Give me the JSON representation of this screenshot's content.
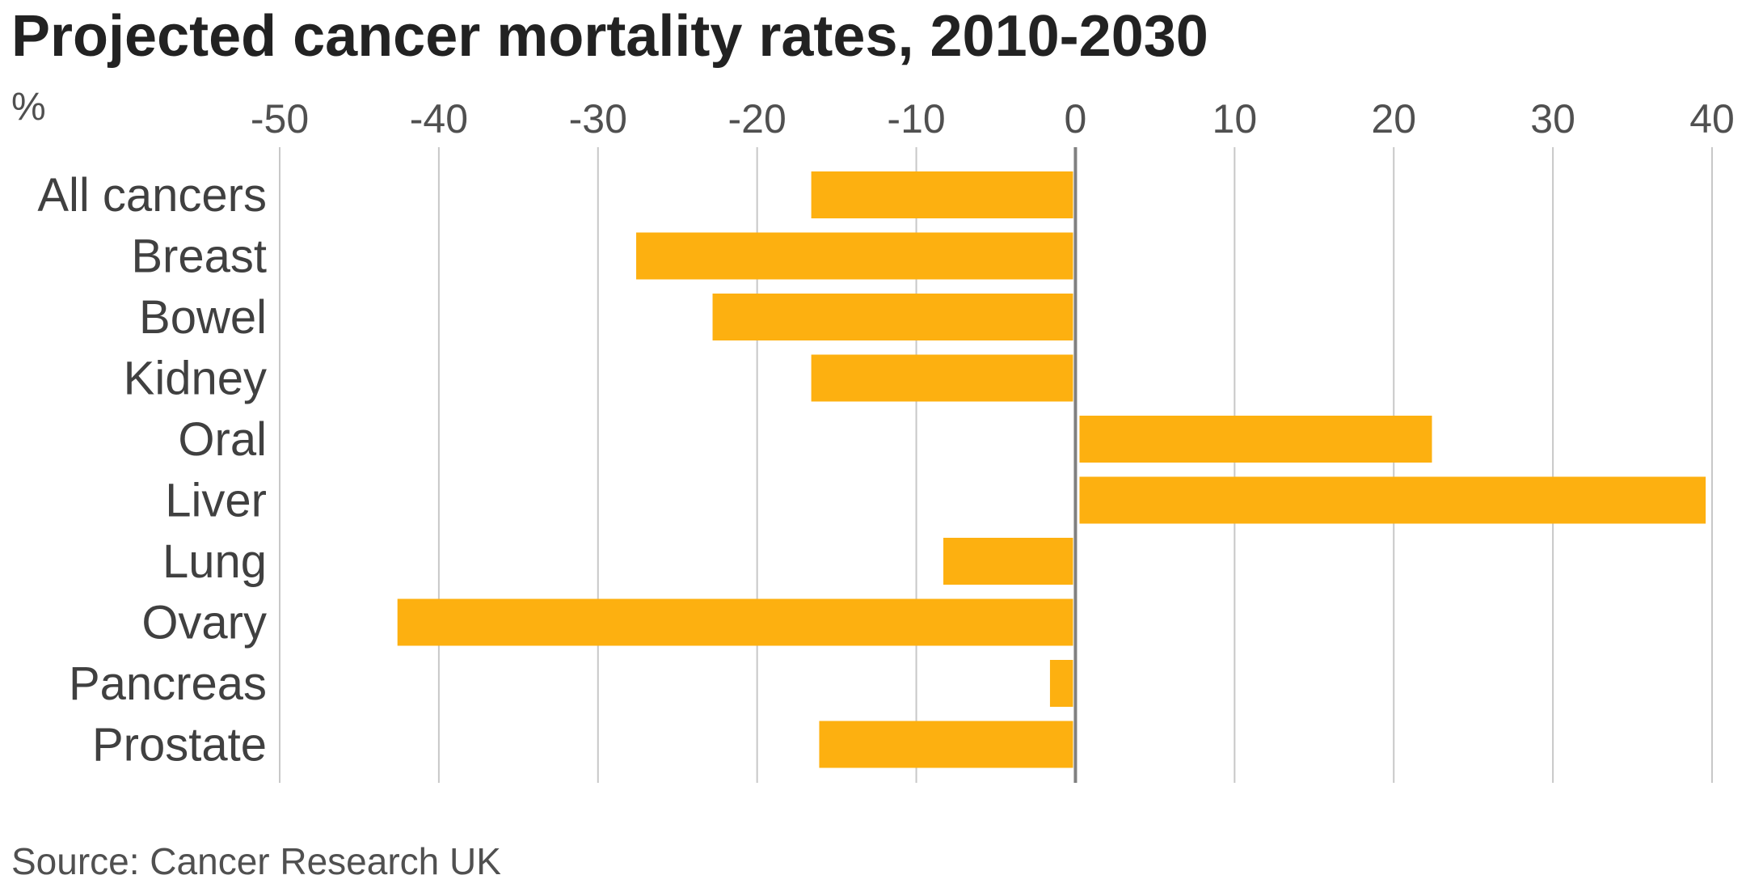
{
  "chart_data": {
    "type": "bar",
    "orientation": "horizontal",
    "title": "Projected cancer mortality rates, 2010-2030",
    "unit": "%",
    "source": "Source: Cancer Research UK",
    "categories": [
      "All cancers",
      "Breast",
      "Bowel",
      "Kidney",
      "Oral",
      "Liver",
      "Lung",
      "Ovary",
      "Pancreas",
      "Prostate"
    ],
    "values": [
      -16.6,
      -27.6,
      -22.8,
      -16.6,
      22.4,
      39.6,
      -8.3,
      -42.6,
      -1.6,
      -16.1
    ],
    "xlim": [
      -50,
      40
    ],
    "xticks": [
      -50,
      -40,
      -30,
      -20,
      -10,
      0,
      10,
      20,
      30,
      40
    ],
    "grid": true,
    "bar_color": "#FDB010",
    "grid_color": "#C8C8C8",
    "zero_line_color": "#808080"
  }
}
